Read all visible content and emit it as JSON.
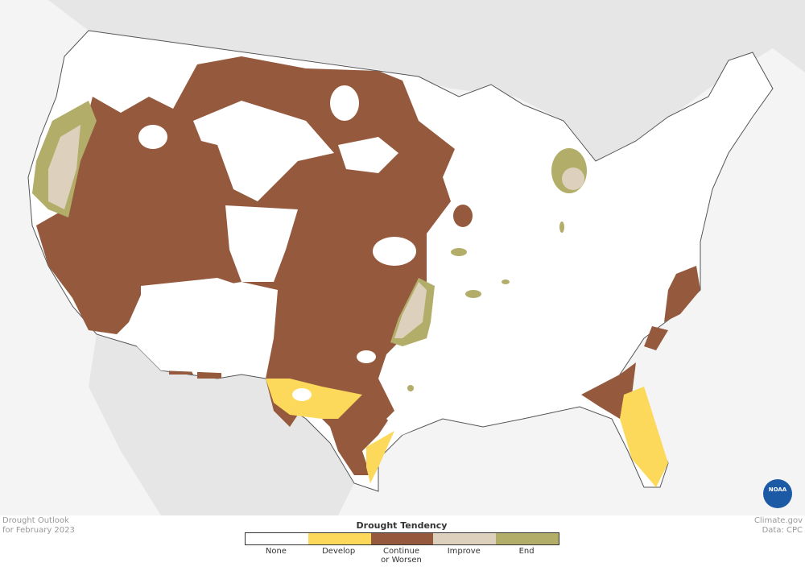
{
  "caption": {
    "lines": [
      "Drought Outlook",
      "for February 2023"
    ]
  },
  "legend": {
    "title": "Drought Tendency",
    "items": [
      {
        "label": "None",
        "color": "#ffffff"
      },
      {
        "label": "Develop",
        "color": "#fcd95b"
      },
      {
        "label": "Continue or Worsen",
        "color": "#955a3e"
      },
      {
        "label": "Improve",
        "color": "#ddd1bd"
      },
      {
        "label": "End",
        "color": "#b3ad6a"
      }
    ]
  },
  "credits": [
    "Climate.gov",
    "Data: CPC"
  ],
  "logo": "NOAA"
}
